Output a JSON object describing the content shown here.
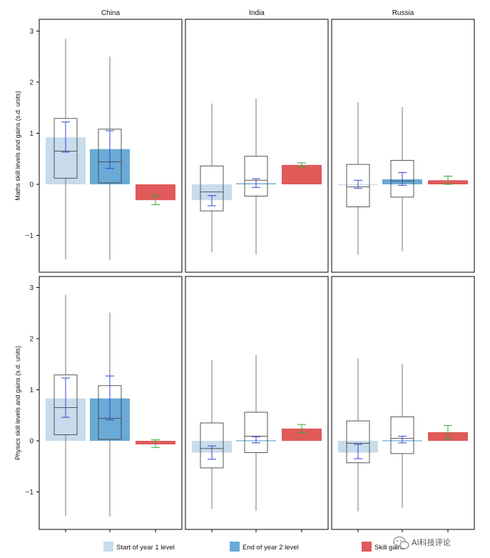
{
  "chart_data": {
    "type": "box-bar",
    "columns": [
      "China",
      "India",
      "Russia"
    ],
    "rows": [
      {
        "ylabel": "Maths skill levels and gains (s.d. units)"
      },
      {
        "ylabel": "Physics skill levels and gains (s.d. units)"
      }
    ],
    "y_ticks": [
      3,
      2,
      1,
      0,
      -1
    ],
    "y_tick_labels": [
      "3",
      "2",
      "1",
      "0",
      "−1"
    ],
    "ylim": [
      -1.7,
      3.25
    ],
    "legend": [
      {
        "key": "start",
        "label": "Start of year 1 level",
        "color": "#c7dcec"
      },
      {
        "key": "end",
        "label": "End of year 2 level",
        "color": "#6aaad6"
      },
      {
        "key": "gain",
        "label": "Skill gains",
        "color": "#e05a5a"
      }
    ],
    "ci_colors": {
      "start": "#3344cc",
      "end": "#3344cc",
      "gain": "#33aa33"
    },
    "box_color": "#444444",
    "panels": [
      {
        "row": 0,
        "col": 0,
        "start": {
          "bar": 0.92,
          "ci": [
            0.63,
            1.22
          ],
          "box": {
            "min": -1.47,
            "q1": 0.12,
            "median": 0.65,
            "q3": 1.29,
            "max": 2.85
          }
        },
        "end": {
          "bar": 0.69,
          "ci": [
            0.31,
            1.05
          ],
          "box": {
            "min": -1.48,
            "q1": 0.03,
            "median": 0.44,
            "q3": 1.08,
            "max": 2.5
          }
        },
        "gain": {
          "bar": -0.31,
          "ci": [
            -0.4,
            -0.22
          ]
        }
      },
      {
        "row": 0,
        "col": 1,
        "start": {
          "bar": -0.31,
          "ci": [
            -0.42,
            -0.22
          ],
          "box": {
            "min": -1.33,
            "q1": -0.52,
            "median": -0.15,
            "q3": 0.36,
            "max": 1.58
          }
        },
        "end": {
          "bar": 0.02,
          "ci": [
            -0.06,
            0.11
          ],
          "box": {
            "min": -1.37,
            "q1": -0.23,
            "median": 0.08,
            "q3": 0.55,
            "max": 1.68
          }
        },
        "gain": {
          "bar": 0.38,
          "ci": [
            0.34,
            0.42
          ]
        }
      },
      {
        "row": 0,
        "col": 2,
        "start": {
          "bar": 0.0,
          "ci": [
            -0.08,
            0.08
          ],
          "box": {
            "min": -1.38,
            "q1": -0.44,
            "median": -0.05,
            "q3": 0.39,
            "max": 1.61
          }
        },
        "end": {
          "bar": 0.1,
          "ci": [
            -0.02,
            0.23
          ],
          "box": {
            "min": -1.31,
            "q1": -0.25,
            "median": 0.06,
            "q3": 0.47,
            "max": 1.51
          }
        },
        "gain": {
          "bar": 0.08,
          "ci": [
            0.0,
            0.16
          ]
        }
      },
      {
        "row": 1,
        "col": 0,
        "start": {
          "bar": 0.83,
          "ci": [
            0.46,
            1.23
          ],
          "box": {
            "min": -1.47,
            "q1": 0.12,
            "median": 0.65,
            "q3": 1.29,
            "max": 2.86
          }
        },
        "end": {
          "bar": 0.83,
          "ci": [
            0.41,
            1.27
          ],
          "box": {
            "min": -1.48,
            "q1": 0.03,
            "median": 0.44,
            "q3": 1.08,
            "max": 2.51
          }
        },
        "gain": {
          "bar": -0.07,
          "ci": [
            -0.13,
            0.02
          ]
        }
      },
      {
        "row": 1,
        "col": 1,
        "start": {
          "bar": -0.23,
          "ci": [
            -0.36,
            -0.1
          ],
          "box": {
            "min": -1.33,
            "q1": -0.53,
            "median": -0.15,
            "q3": 0.35,
            "max": 1.58
          }
        },
        "end": {
          "bar": 0.01,
          "ci": [
            -0.04,
            0.08
          ],
          "box": {
            "min": -1.37,
            "q1": -0.23,
            "median": 0.09,
            "q3": 0.56,
            "max": 1.68
          }
        },
        "gain": {
          "bar": 0.24,
          "ci": [
            0.16,
            0.32
          ]
        }
      },
      {
        "row": 1,
        "col": 2,
        "start": {
          "bar": -0.23,
          "ci": [
            -0.35,
            -0.07
          ],
          "box": {
            "min": -1.38,
            "q1": -0.43,
            "median": -0.05,
            "q3": 0.39,
            "max": 1.61
          }
        },
        "end": {
          "bar": 0.01,
          "ci": [
            -0.04,
            0.09
          ],
          "box": {
            "min": -1.31,
            "q1": -0.25,
            "median": 0.05,
            "q3": 0.47,
            "max": 1.51
          }
        },
        "gain": {
          "bar": 0.17,
          "ci": [
            0.04,
            0.3
          ]
        }
      }
    ]
  },
  "watermark": {
    "text": "AI科技评论"
  }
}
